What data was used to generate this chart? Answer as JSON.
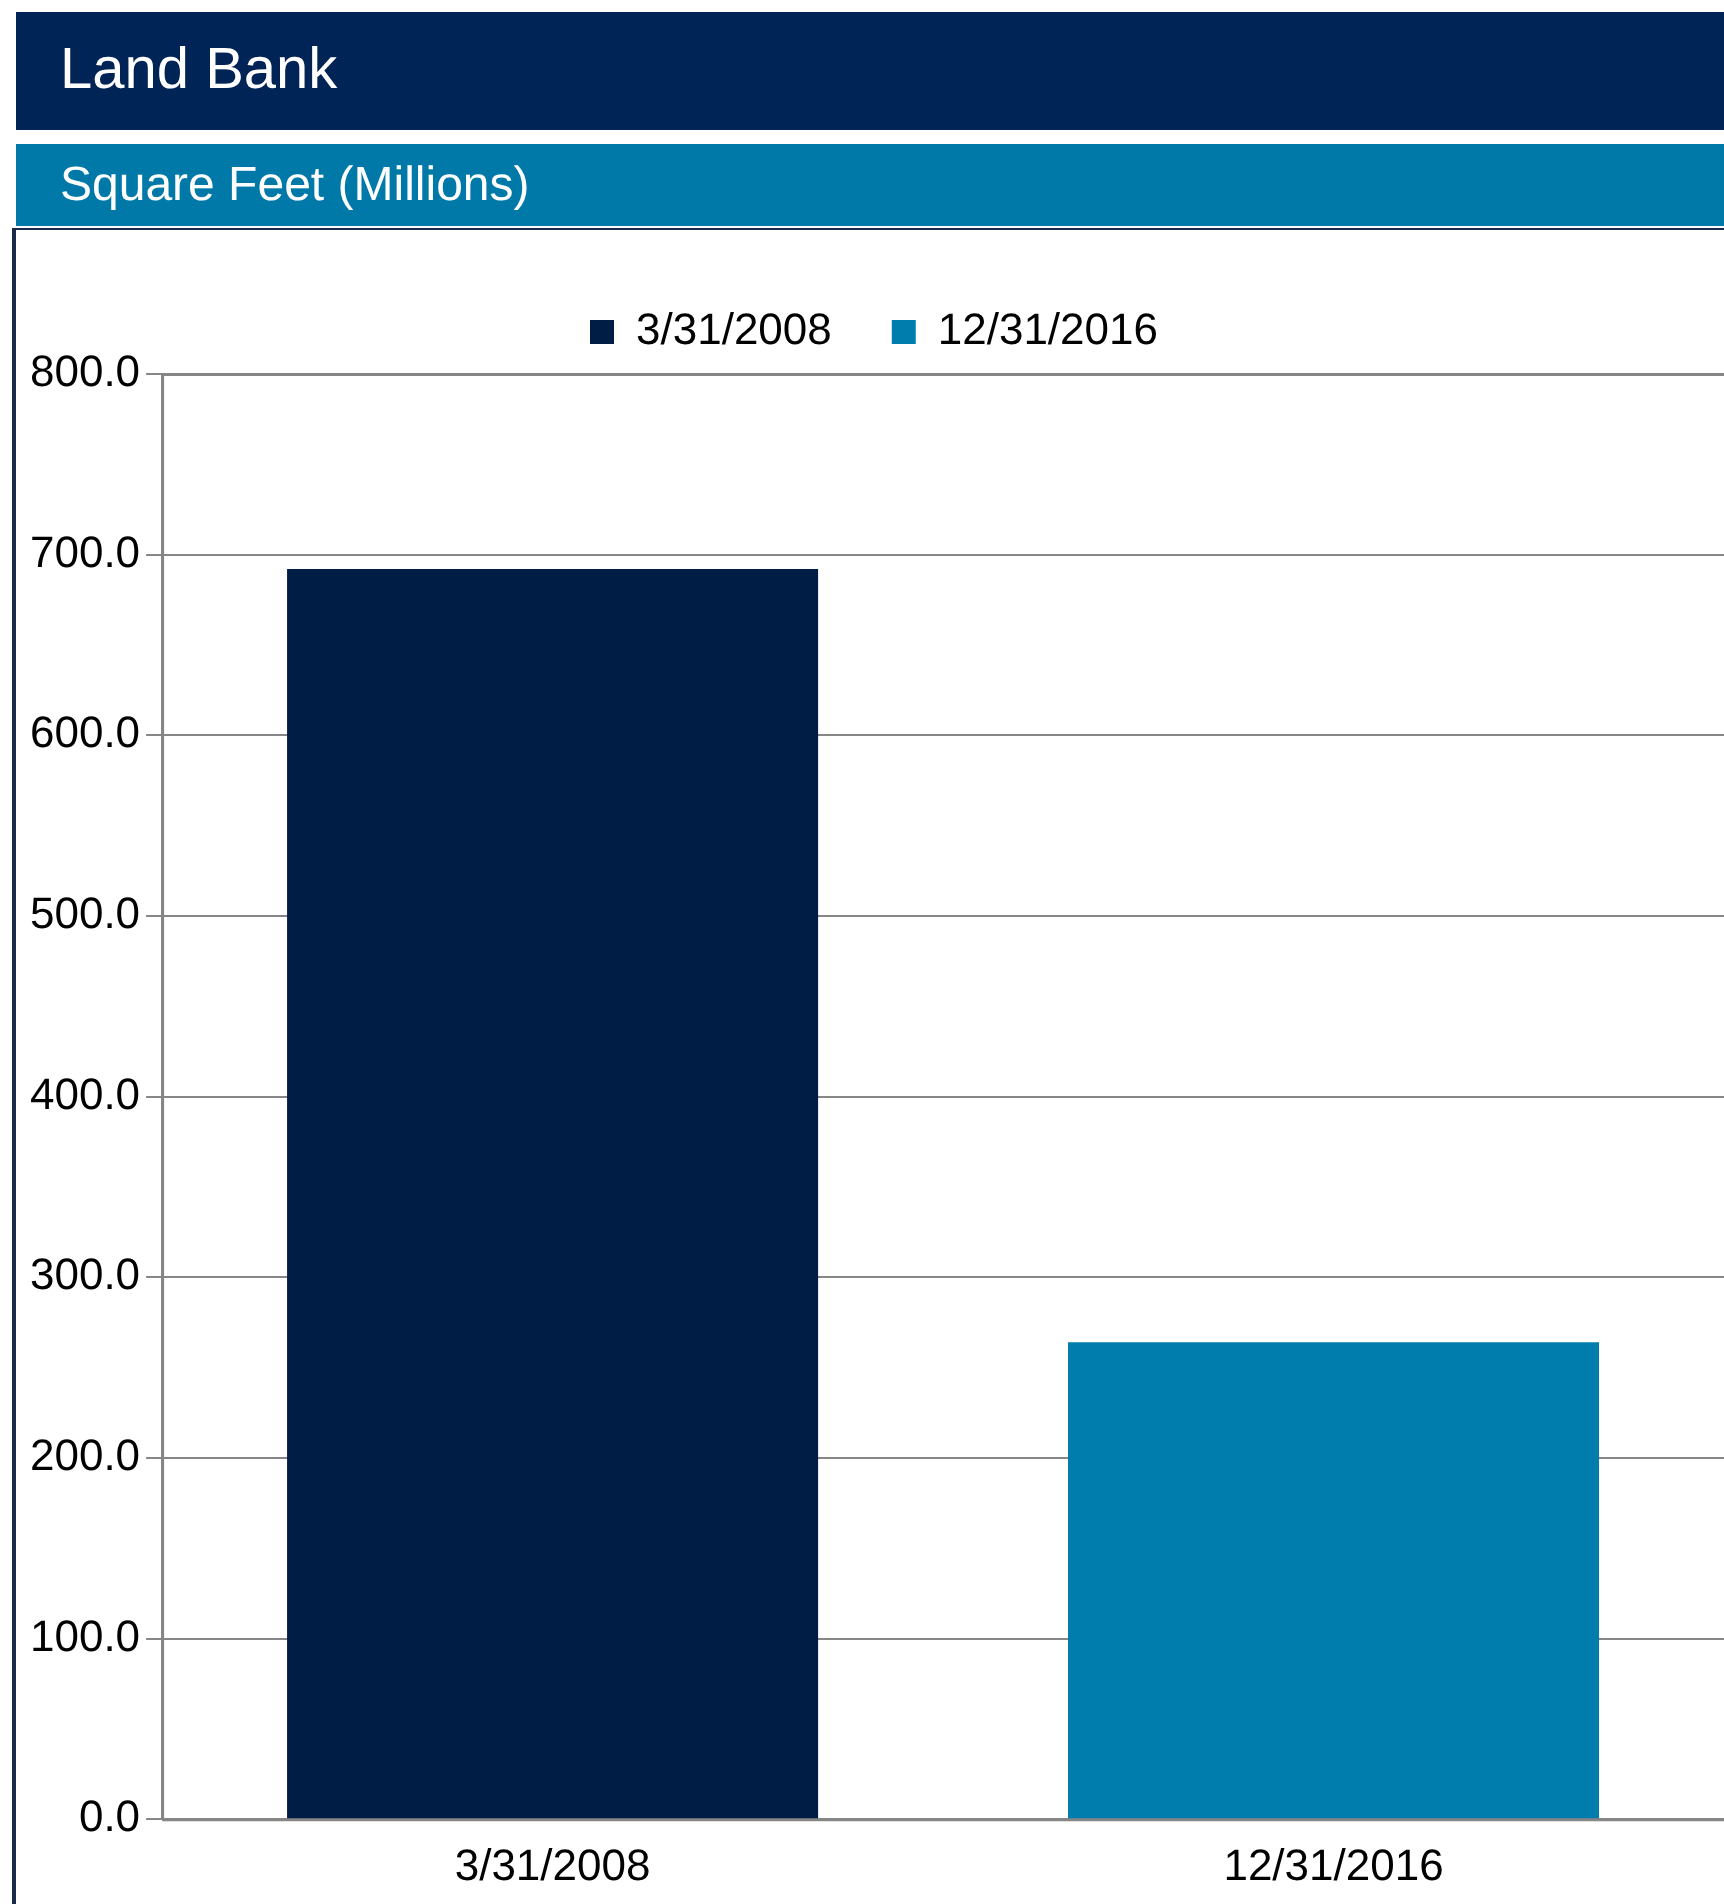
{
  "chart_data": {
    "type": "bar",
    "title": "Land Bank",
    "subtitle": "Square Feet (Millions)",
    "categories": [
      "3/31/2008",
      "12/31/2016"
    ],
    "series": [
      {
        "name": "3/31/2008",
        "color": "#001e45",
        "values": [
          692,
          null
        ]
      },
      {
        "name": "12/31/2016",
        "color": "#007dac",
        "values": [
          null,
          264
        ]
      }
    ],
    "ylim": [
      0,
      800
    ],
    "yticks": [
      {
        "value": 0,
        "label": "0.0"
      },
      {
        "value": 100,
        "label": "100.0"
      },
      {
        "value": 200,
        "label": "200.0"
      },
      {
        "value": 300,
        "label": "300.0"
      },
      {
        "value": 400,
        "label": "400.0"
      },
      {
        "value": 500,
        "label": "500.0"
      },
      {
        "value": 600,
        "label": "600.0"
      },
      {
        "value": 700,
        "label": "700.0"
      },
      {
        "value": 800,
        "label": "800.0"
      }
    ],
    "grid": "y",
    "legend": "top"
  }
}
